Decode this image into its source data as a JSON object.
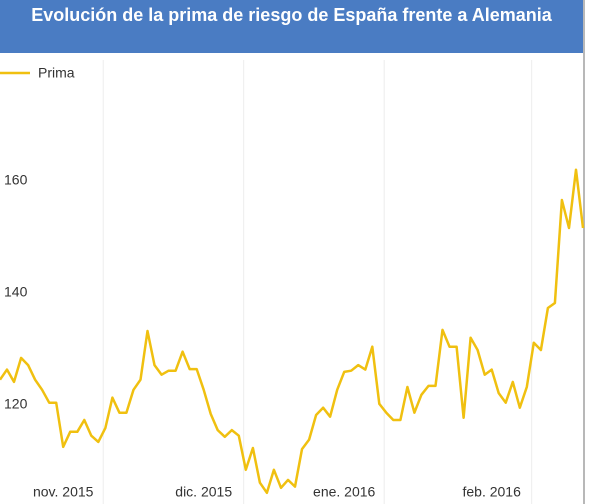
{
  "chart_data": {
    "type": "line",
    "title": "Evolución de la prima de riesgo de España frente a Alemania",
    "categories": [
      null,
      null,
      null,
      null,
      null,
      null,
      null,
      null,
      null,
      "nov. 2015",
      null,
      null,
      null,
      null,
      null,
      null,
      null,
      null,
      null,
      null,
      null,
      null,
      null,
      null,
      null,
      null,
      null,
      null,
      null,
      "dic. 2015",
      null,
      null,
      null,
      null,
      null,
      null,
      null,
      null,
      null,
      null,
      null,
      null,
      null,
      null,
      null,
      null,
      null,
      null,
      null,
      "ene. 2016",
      null,
      null,
      null,
      null,
      null,
      null,
      null,
      null,
      null,
      null,
      null,
      null,
      null,
      null,
      null,
      null,
      null,
      null,
      null,
      null,
      "feb. 2016",
      null,
      null,
      null,
      null,
      null,
      null,
      null,
      null,
      null,
      null,
      null,
      null,
      null
    ],
    "series": [
      {
        "name": "Prima",
        "color": "#f0c010",
        "values": [
          124.5,
          126.3,
          124.1,
          128.4,
          127.1,
          124.5,
          122.7,
          120.4,
          120.4,
          112.5,
          115.2,
          115.2,
          117.3,
          114.5,
          113.4,
          115.9,
          121.3,
          118.6,
          118.6,
          122.7,
          124.5,
          133.2,
          127.1,
          125.4,
          126.1,
          126.1,
          129.5,
          126.4,
          126.4,
          122.7,
          118.4,
          115.5,
          114.3,
          115.5,
          114.5,
          108.4,
          112.3,
          106.1,
          104.3,
          108.4,
          105.2,
          106.6,
          105.4,
          112.1,
          113.8,
          118.2,
          119.5,
          117.9,
          122.7,
          125.9,
          126.1,
          127.1,
          126.3,
          130.4,
          120.2,
          118.6,
          117.3,
          117.3,
          123.2,
          118.6,
          121.8,
          123.4,
          123.4,
          133.4,
          130.4,
          130.4,
          117.7,
          132.0,
          129.8,
          125.4,
          126.3,
          122.1,
          120.4,
          124.1,
          119.5,
          123.2,
          131.1,
          129.8,
          137.3,
          138.2,
          156.6,
          151.6,
          162.0,
          151.6
        ]
      }
    ],
    "ylim": [
      102.3,
      181.6
    ],
    "yticks": [
      120,
      140,
      160
    ],
    "grid": "x"
  }
}
